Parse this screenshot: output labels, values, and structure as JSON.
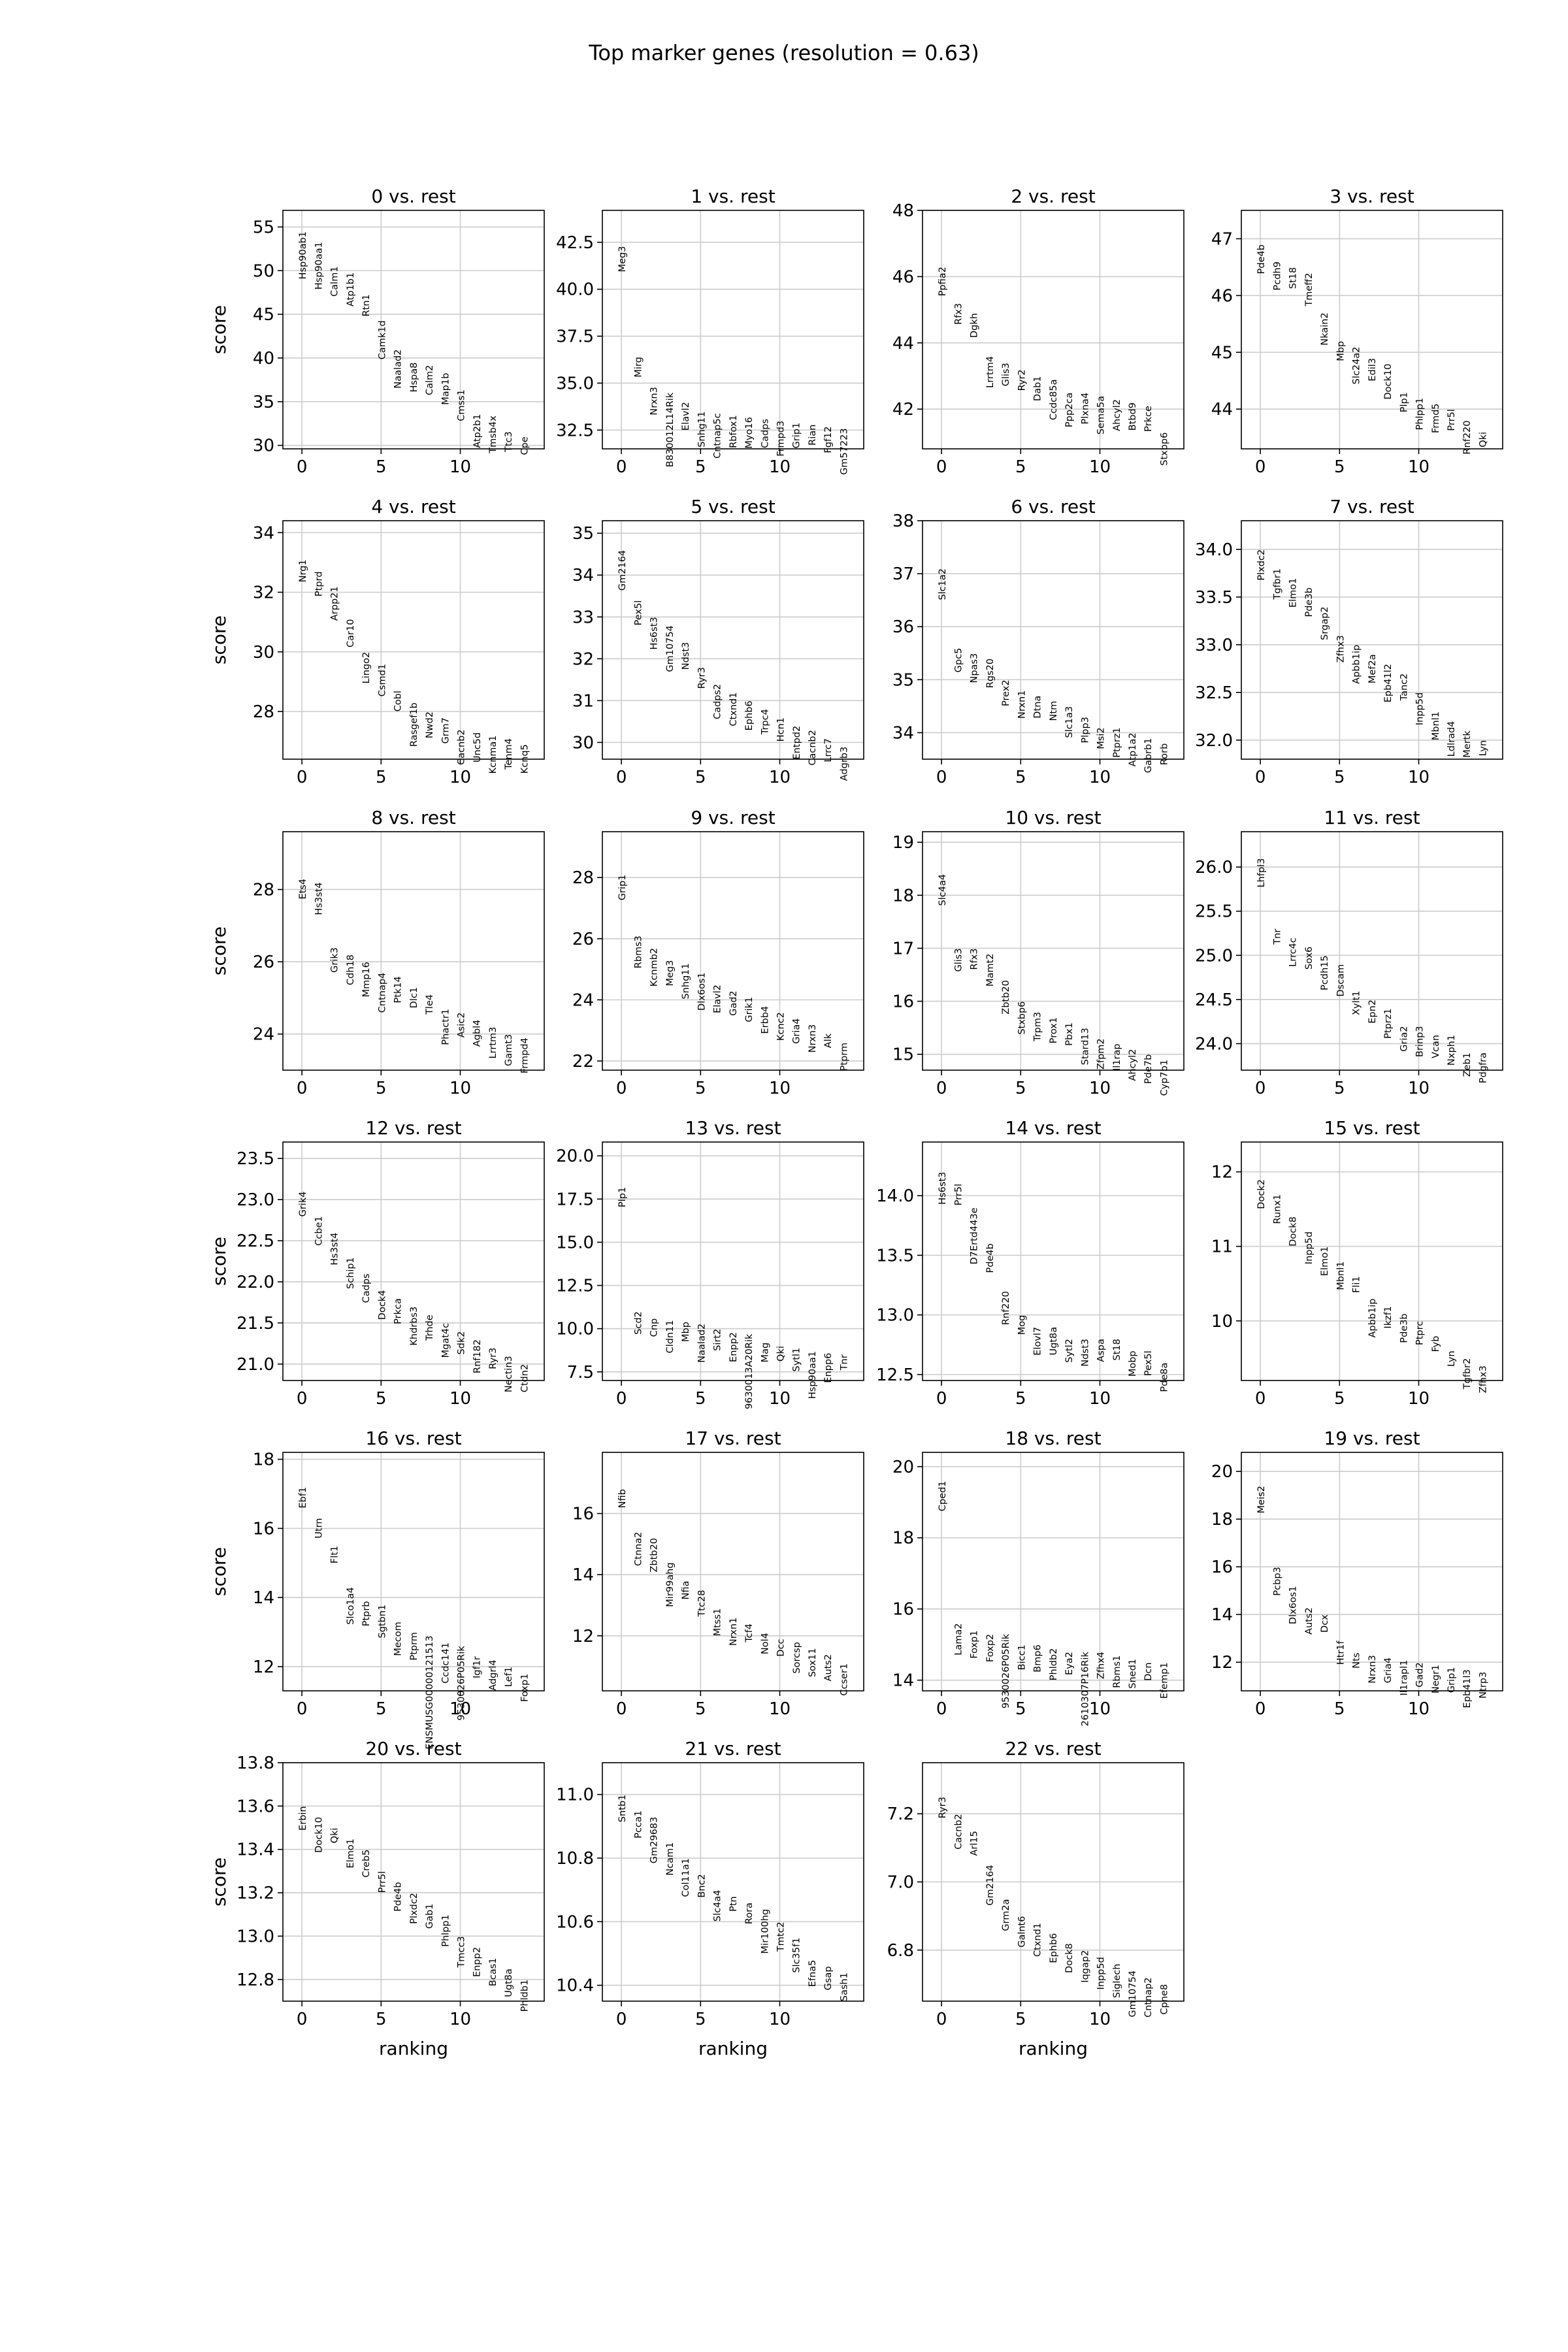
{
  "title": "Top marker genes (resolution = 0.63)",
  "ylabel": "score",
  "xlabel": "ranking",
  "chart_data": [
    {
      "type": "scatter",
      "title": "0 vs. rest",
      "ylim": [
        29.6,
        56.9
      ],
      "yticks": [
        30,
        35,
        40,
        45,
        50,
        55
      ],
      "ytick_labels": [
        "30",
        "35",
        "40",
        "45",
        "50",
        "55"
      ],
      "genes": [
        "Hsp90ab1",
        "Hsp90aa1",
        "Calm1",
        "Atp1b1",
        "Rtn1",
        "Camk1d",
        "Naalad2",
        "Hspa8",
        "Calm2",
        "Map1b",
        "Cmss1",
        "Atp2b1",
        "Tmsb4x",
        "Ttc3",
        "Cpe"
      ],
      "scores": [
        54.5,
        53.3,
        50.5,
        49.8,
        47.3,
        44.3,
        41.0,
        39.5,
        39.2,
        38.3,
        36.4,
        33.6,
        33.4,
        31.6,
        31.0
      ]
    },
    {
      "type": "scatter",
      "title": "1 vs. rest",
      "ylim": [
        31.5,
        44.2
      ],
      "yticks": [
        32.5,
        35.0,
        37.5,
        40.0,
        42.5
      ],
      "ytick_labels": [
        "32.5",
        "35.0",
        "37.5",
        "40.0",
        "42.5"
      ],
      "genes": [
        "Meg3",
        "Mirg",
        "Nrxn3",
        "B830012L14Rik",
        "Elavl2",
        "Snhg11",
        "Cntnap5c",
        "Rbfox1",
        "Myo16",
        "Cadps",
        "Frmpd3",
        "Grip1",
        "Rian",
        "Fgf12",
        "Gm57223"
      ],
      "scores": [
        42.3,
        36.4,
        34.8,
        34.5,
        34.0,
        33.5,
        33.4,
        33.3,
        33.2,
        33.1,
        33.0,
        32.9,
        32.8,
        32.7,
        32.6
      ]
    },
    {
      "type": "scatter",
      "title": "2 vs. rest",
      "ylim": [
        40.8,
        48.0
      ],
      "yticks": [
        42,
        44,
        46,
        48
      ],
      "ytick_labels": [
        "42",
        "44",
        "46",
        "48"
      ],
      "genes": [
        "Ppfia2",
        "Rfx3",
        "Dgkh",
        "Lrrtm4",
        "Glis3",
        "Ryr2",
        "Dab1",
        "Ccdc85a",
        "Ppp2ca",
        "Plxna4",
        "Sema5a",
        "Ahcyl2",
        "Btbd9",
        "Prkce",
        "Stxbp6"
      ],
      "scores": [
        46.3,
        45.2,
        44.9,
        43.6,
        43.4,
        43.2,
        43.0,
        42.9,
        42.5,
        42.5,
        42.4,
        42.3,
        42.2,
        42.1,
        41.3
      ]
    },
    {
      "type": "scatter",
      "title": "3 vs. rest",
      "ylim": [
        43.3,
        47.5
      ],
      "yticks": [
        44,
        45,
        46,
        47
      ],
      "ytick_labels": [
        "44",
        "45",
        "46",
        "47"
      ],
      "genes": [
        "Pde4b",
        "Pcdh9",
        "St18",
        "Tmeff2",
        "Nkain2",
        "Mbp",
        "Slc24a2",
        "Edil3",
        "Dock10",
        "Plp1",
        "Phlpp1",
        "Frmd5",
        "Prr5l",
        "Rnf220",
        "Qki"
      ],
      "scores": [
        46.9,
        46.6,
        46.5,
        46.4,
        45.7,
        45.2,
        45.1,
        44.9,
        44.8,
        44.3,
        44.2,
        44.1,
        44.0,
        43.8,
        43.6
      ]
    },
    {
      "type": "scatter",
      "title": "4 vs. rest",
      "ylim": [
        26.4,
        34.4
      ],
      "yticks": [
        28,
        30,
        32,
        34
      ],
      "ytick_labels": [
        "28",
        "30",
        "32",
        "34"
      ],
      "genes": [
        "Nrg1",
        "Ptprd",
        "Arpp21",
        "Car10",
        "Lingo2",
        "Csmd1",
        "Cobl",
        "Rasgef1b",
        "Nwd2",
        "Grm7",
        "Cacnb2",
        "Unc5d",
        "Kcnma1",
        "Tenm4",
        "Kcnq5"
      ],
      "scores": [
        33.1,
        32.7,
        32.2,
        31.1,
        30.0,
        29.6,
        28.7,
        28.3,
        28.0,
        27.8,
        27.4,
        27.3,
        27.2,
        27.1,
        26.9
      ]
    },
    {
      "type": "scatter",
      "title": "5 vs. rest",
      "ylim": [
        29.6,
        35.3
      ],
      "yticks": [
        30,
        31,
        32,
        33,
        34,
        35
      ],
      "ytick_labels": [
        "30",
        "31",
        "32",
        "33",
        "34",
        "35"
      ],
      "genes": [
        "Gm2164",
        "Pex5l",
        "Hs6st3",
        "Gm10754",
        "Ndst3",
        "Ryr3",
        "Cadps2",
        "Ctxnd1",
        "Ephb6",
        "Trpc4",
        "Hcn1",
        "Entpd2",
        "Cacnb2",
        "Lrrc7",
        "Adgrb3"
      ],
      "scores": [
        34.6,
        33.4,
        33.0,
        32.8,
        32.4,
        31.8,
        31.4,
        31.2,
        31.0,
        30.8,
        30.6,
        30.4,
        30.3,
        30.1,
        29.9
      ]
    },
    {
      "type": "scatter",
      "title": "6 vs. rest",
      "ylim": [
        33.5,
        38.0
      ],
      "yticks": [
        34,
        35,
        36,
        37,
        38
      ],
      "ytick_labels": [
        "34",
        "35",
        "36",
        "37",
        "38"
      ],
      "genes": [
        "Slc1a2",
        "Gpc5",
        "Npas3",
        "Rgs20",
        "Prex2",
        "Nrxn1",
        "Dtna",
        "Ntm",
        "Slc1a3",
        "Plpp3",
        "Msi2",
        "Ptprz1",
        "Atp1a2",
        "Gabrb1",
        "Rorb"
      ],
      "scores": [
        37.1,
        35.6,
        35.5,
        35.4,
        35.0,
        34.8,
        34.7,
        34.6,
        34.5,
        34.3,
        34.1,
        34.1,
        34.0,
        33.9,
        33.8
      ]
    },
    {
      "type": "scatter",
      "title": "7 vs. rest",
      "ylim": [
        31.8,
        34.3
      ],
      "yticks": [
        32.0,
        32.5,
        33.0,
        33.5,
        34.0
      ],
      "ytick_labels": [
        "32.0",
        "32.5",
        "33.0",
        "33.5",
        "34.0"
      ],
      "genes": [
        "Plxdc2",
        "Tgfbr1",
        "Elmo1",
        "Pde3b",
        "Srgap2",
        "Zfhx3",
        "Apbb1ip",
        "Mef2a",
        "Epb41l2",
        "Tanc2",
        "Inpp5d",
        "Mbnl1",
        "Ldlrad4",
        "Mertk",
        "Lyn"
      ],
      "scores": [
        34.0,
        33.8,
        33.7,
        33.6,
        33.4,
        33.1,
        33.0,
        32.9,
        32.8,
        32.7,
        32.5,
        32.3,
        32.2,
        32.1,
        32.0
      ]
    },
    {
      "type": "scatter",
      "title": "8 vs. rest",
      "ylim": [
        23.0,
        29.6
      ],
      "yticks": [
        24,
        26,
        28
      ],
      "ytick_labels": [
        "24",
        "26",
        "28"
      ],
      "genes": [
        "Ets4",
        "Hs3st4",
        "Grik3",
        "Cdh18",
        "Mmp16",
        "Cntnap4",
        "Ptk14",
        "Dlc1",
        "Tle4",
        "Phactr1",
        "Asic2",
        "Agbl4",
        "Lrrtm3",
        "Gamt3",
        "Frmpd4"
      ],
      "scores": [
        28.3,
        28.2,
        26.4,
        26.2,
        26.0,
        25.7,
        25.6,
        25.3,
        25.1,
        24.7,
        24.6,
        24.4,
        24.2,
        24.0,
        23.9
      ]
    },
    {
      "type": "scatter",
      "title": "9 vs. rest",
      "ylim": [
        21.7,
        29.5
      ],
      "yticks": [
        22,
        24,
        26,
        28
      ],
      "ytick_labels": [
        "22",
        "24",
        "26",
        "28"
      ],
      "genes": [
        "Grip1",
        "Rbms3",
        "Kcnmb2",
        "Meg3",
        "Snhg11",
        "Dlx6os1",
        "Elavl2",
        "Gad2",
        "Grik1",
        "Erbb4",
        "Kcnc2",
        "Gria4",
        "Nrxn3",
        "Alk",
        "Ptprm"
      ],
      "scores": [
        28.1,
        26.1,
        25.7,
        25.3,
        25.2,
        24.9,
        24.5,
        24.3,
        24.1,
        23.8,
        23.6,
        23.4,
        23.2,
        22.9,
        22.6
      ]
    },
    {
      "type": "scatter",
      "title": "10 vs. rest",
      "ylim": [
        14.7,
        19.2
      ],
      "yticks": [
        15,
        16,
        17,
        18,
        19
      ],
      "ytick_labels": [
        "15",
        "16",
        "17",
        "18",
        "19"
      ],
      "genes": [
        "Slc4a4",
        "Glis3",
        "Rfx3",
        "Mamt2",
        "Zbtb20",
        "Stxbp6",
        "Trpm3",
        "Prox1",
        "Pbx1",
        "Stard13",
        "Zfpm2",
        "Il1rap",
        "Ahcyl2",
        "Pde7b",
        "Cyp7b1"
      ],
      "scores": [
        18.4,
        17.0,
        17.0,
        16.9,
        16.4,
        16.0,
        15.8,
        15.7,
        15.6,
        15.5,
        15.3,
        15.2,
        15.1,
        15.0,
        14.9
      ]
    },
    {
      "type": "scatter",
      "title": "11 vs. rest",
      "ylim": [
        23.7,
        26.4
      ],
      "yticks": [
        24.0,
        24.5,
        25.0,
        25.5,
        26.0
      ],
      "ytick_labels": [
        "24.0",
        "24.5",
        "25.0",
        "25.5",
        "26.0"
      ],
      "genes": [
        "Lhfpl3",
        "Tnr",
        "Lrrc4c",
        "Sox6",
        "Pcdh15",
        "Dscam",
        "Xylt1",
        "Epn2",
        "Ptprz1",
        "Gria2",
        "Brinp3",
        "Vcan",
        "Nxph1",
        "Zeb1",
        "Pdgfra"
      ],
      "scores": [
        26.1,
        25.3,
        25.2,
        25.1,
        25.0,
        24.9,
        24.6,
        24.5,
        24.4,
        24.2,
        24.2,
        24.1,
        24.1,
        23.9,
        23.9
      ]
    },
    {
      "type": "scatter",
      "title": "12 vs. rest",
      "ylim": [
        20.8,
        23.7
      ],
      "yticks": [
        21.0,
        21.5,
        22.0,
        22.5,
        23.0,
        23.5
      ],
      "ytick_labels": [
        "21.0",
        "21.5",
        "22.0",
        "22.5",
        "23.0",
        "23.5"
      ],
      "genes": [
        "Grik4",
        "Ccbe1",
        "Hs3st4",
        "Schip1",
        "Cadps",
        "Dock4",
        "Prkca",
        "Khdrbs3",
        "Trhde",
        "Mgat4c",
        "Sdk2",
        "Rnf182",
        "Ryr3",
        "Nectin3",
        "Ctdn2"
      ],
      "scores": [
        23.1,
        22.8,
        22.6,
        22.3,
        22.1,
        21.9,
        21.8,
        21.7,
        21.6,
        21.5,
        21.4,
        21.3,
        21.2,
        21.1,
        21.0
      ]
    },
    {
      "type": "scatter",
      "title": "13 vs. rest",
      "ylim": [
        7.0,
        20.8
      ],
      "yticks": [
        7.5,
        10.0,
        12.5,
        15.0,
        17.5,
        20.0
      ],
      "ytick_labels": [
        "7.5",
        "10.0",
        "12.5",
        "15.0",
        "17.5",
        "20.0"
      ],
      "genes": [
        "Plp1",
        "Scd2",
        "Cnp",
        "Cldn11",
        "Mbp",
        "Naalad2",
        "Sirt2",
        "Enpp2",
        "9630013A20Rik",
        "Mag",
        "Qki",
        "Sytl1",
        "Hsp90aa1",
        "Enpp6",
        "Tnr"
      ],
      "scores": [
        18.2,
        11.0,
        10.6,
        10.5,
        10.4,
        10.3,
        10.0,
        9.8,
        9.7,
        9.2,
        9.0,
        8.9,
        8.7,
        8.6,
        8.5
      ]
    },
    {
      "type": "scatter",
      "title": "14 vs. rest",
      "ylim": [
        12.45,
        14.45
      ],
      "yticks": [
        12.5,
        13.0,
        13.5,
        14.0
      ],
      "ytick_labels": [
        "12.5",
        "13.0",
        "13.5",
        "14.0"
      ],
      "genes": [
        "Hs6st3",
        "Prr5l",
        "D7Ertd443e",
        "Pde4b",
        "Rnf220",
        "Mog",
        "Elovl7",
        "Ugt8a",
        "Sytl2",
        "Ndst3",
        "Aspa",
        "St18",
        "Mobp",
        "Pex5l",
        "Pde8a"
      ],
      "scores": [
        14.2,
        14.1,
        13.9,
        13.6,
        13.2,
        13.0,
        12.9,
        12.9,
        12.8,
        12.8,
        12.8,
        12.8,
        12.7,
        12.7,
        12.6
      ]
    },
    {
      "type": "scatter",
      "title": "15 vs. rest",
      "ylim": [
        9.2,
        12.4
      ],
      "yticks": [
        10,
        11,
        12
      ],
      "ytick_labels": [
        "10",
        "11",
        "12"
      ],
      "genes": [
        "Dock2",
        "Runx1",
        "Dock8",
        "Inpp5d",
        "Elmo1",
        "Mbnl1",
        "Fli1",
        "Apbb1ip",
        "Ikzf1",
        "Pde3b",
        "Ptprc",
        "Fyb",
        "Lyn",
        "Tgfbr2",
        "Zfhx3"
      ],
      "scores": [
        11.9,
        11.7,
        11.4,
        11.2,
        11.0,
        10.8,
        10.6,
        10.3,
        10.2,
        10.1,
        10.0,
        9.8,
        9.6,
        9.5,
        9.4
      ]
    },
    {
      "type": "scatter",
      "title": "16 vs. rest",
      "ylim": [
        11.3,
        18.2
      ],
      "yticks": [
        12,
        14,
        16,
        18
      ],
      "ytick_labels": [
        "12",
        "14",
        "16",
        "18"
      ],
      "genes": [
        "Ebf1",
        "Utrn",
        "Flt1",
        "Slco1a4",
        "Ptprb",
        "Sgtbn1",
        "Mecom",
        "Ptprm",
        "ENSMUSG00000121513",
        "Ccdc141",
        "9530026P05Rik",
        "Igf1r",
        "Adgrl4",
        "Lef1",
        "Foxp1"
      ],
      "scores": [
        17.2,
        16.3,
        15.5,
        14.3,
        13.9,
        13.8,
        13.3,
        13.0,
        12.9,
        12.7,
        12.6,
        12.3,
        12.2,
        12.0,
        11.8
      ]
    },
    {
      "type": "scatter",
      "title": "17 vs. rest",
      "ylim": [
        10.2,
        18.0
      ],
      "yticks": [
        12,
        14,
        16
      ],
      "ytick_labels": [
        "12",
        "14",
        "16"
      ],
      "genes": [
        "Nfib",
        "Ctnna2",
        "Zbtb20",
        "Mir99ahg",
        "Nfia",
        "Ttc28",
        "Mtss1",
        "Nrxn1",
        "Tcf4",
        "Nol4",
        "Dcc",
        "Sorcsp",
        "Sox11",
        "Auts2",
        "Ccser1"
      ],
      "scores": [
        16.8,
        15.4,
        15.2,
        14.4,
        13.8,
        13.5,
        12.9,
        12.6,
        12.4,
        12.1,
        11.9,
        11.8,
        11.6,
        11.4,
        11.1
      ]
    },
    {
      "type": "scatter",
      "title": "18 vs. rest",
      "ylim": [
        13.7,
        20.4
      ],
      "yticks": [
        14,
        16,
        18,
        20
      ],
      "ytick_labels": [
        "14",
        "16",
        "18",
        "20"
      ],
      "genes": [
        "Cped1",
        "Lama2",
        "Foxp1",
        "Foxp2",
        "9530026P05Rik",
        "Bicc1",
        "Bmp6",
        "Phldb2",
        "Eya2",
        "2610307P16Rik",
        "Zfhx4",
        "Rbms1",
        "Sned1",
        "Dcn",
        "Efemp1"
      ],
      "scores": [
        19.6,
        15.6,
        15.4,
        15.3,
        15.3,
        15.0,
        15.0,
        14.9,
        14.8,
        14.8,
        14.8,
        14.7,
        14.6,
        14.5,
        14.5
      ]
    },
    {
      "type": "scatter",
      "title": "19 vs. rest",
      "ylim": [
        10.8,
        20.8
      ],
      "yticks": [
        12,
        14,
        16,
        18,
        20
      ],
      "ytick_labels": [
        "12",
        "14",
        "16",
        "18",
        "20"
      ],
      "genes": [
        "Meis2",
        "Pcbp3",
        "Dlx6os1",
        "Auts2",
        "Dcx",
        "Htr1f",
        "Nts",
        "Nrxn3",
        "Gria4",
        "Il1rapl1",
        "Gad2",
        "Negr1",
        "Grip1",
        "Epb41l3",
        "Ntrp3"
      ],
      "scores": [
        19.4,
        16.0,
        15.2,
        14.3,
        14.0,
        12.9,
        12.4,
        12.3,
        12.2,
        12.1,
        12.0,
        11.9,
        11.8,
        11.7,
        11.6
      ]
    },
    {
      "type": "scatter",
      "title": "20 vs. rest",
      "ylim": [
        12.7,
        13.8
      ],
      "yticks": [
        12.8,
        13.0,
        13.2,
        13.4,
        13.6,
        13.8
      ],
      "ytick_labels": [
        "12.8",
        "13.0",
        "13.2",
        "13.4",
        "13.6",
        "13.8"
      ],
      "genes": [
        "Erbin",
        "Dock10",
        "Qki",
        "Elmo1",
        "Creb5",
        "Prr5l",
        "Pde4b",
        "Plxdc2",
        "Gab1",
        "Phlpp1",
        "Tmcc3",
        "Enpp2",
        "Bcas1",
        "Ugt8a",
        "Phldb1"
      ],
      "scores": [
        13.6,
        13.55,
        13.5,
        13.45,
        13.4,
        13.3,
        13.25,
        13.2,
        13.15,
        13.1,
        13.0,
        12.95,
        12.9,
        12.85,
        12.8
      ]
    },
    {
      "type": "scatter",
      "title": "21 vs. rest",
      "ylim": [
        10.35,
        11.1
      ],
      "yticks": [
        10.4,
        10.6,
        10.8,
        11.0
      ],
      "ytick_labels": [
        "10.4",
        "10.6",
        "10.8",
        "11.0"
      ],
      "genes": [
        "Sntb1",
        "Pcca1",
        "Gm29683",
        "Ncam1",
        "Col11a1",
        "Bnc2",
        "Slc4a4",
        "Ptn",
        "Rora",
        "Mir100hg",
        "Tmtc2",
        "Slc35f1",
        "Efna5",
        "Gsap",
        "Sash1"
      ],
      "scores": [
        11.0,
        10.95,
        10.93,
        10.85,
        10.8,
        10.75,
        10.7,
        10.68,
        10.66,
        10.64,
        10.6,
        10.55,
        10.48,
        10.46,
        10.44
      ]
    },
    {
      "type": "scatter",
      "title": "22 vs. rest",
      "ylim": [
        6.65,
        7.35
      ],
      "yticks": [
        6.8,
        7.0,
        7.2
      ],
      "ytick_labels": [
        "6.8",
        "7.0",
        "7.2"
      ],
      "genes": [
        "Ryr3",
        "Cacnb2",
        "Arl15",
        "Gm2164",
        "Grm2a",
        "Galnt6",
        "Ctxnd1",
        "Ephb6",
        "Dock8",
        "Iqgap2",
        "Inpp5d",
        "Siglech",
        "Gm10754",
        "Cntnap2",
        "Cpne8"
      ],
      "scores": [
        7.25,
        7.2,
        7.15,
        7.05,
        6.95,
        6.9,
        6.88,
        6.85,
        6.82,
        6.8,
        6.78,
        6.76,
        6.74,
        6.72,
        6.7
      ]
    }
  ]
}
